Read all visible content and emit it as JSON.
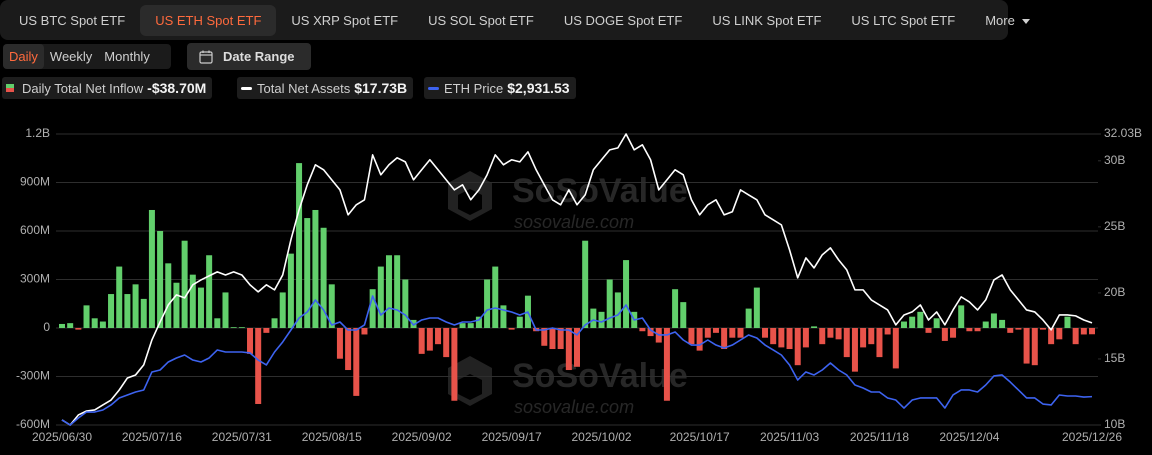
{
  "tabs": [
    "US BTC Spot ETF",
    "US ETH Spot ETF",
    "US XRP Spot ETF",
    "US SOL Spot ETF",
    "US DOGE Spot ETF",
    "US LINK Spot ETF",
    "US LTC Spot ETF"
  ],
  "more": "More",
  "periods": [
    "Daily",
    "Weekly",
    "Monthly"
  ],
  "date_range": "Date Range",
  "summary": [
    "-$38.70M",
    "$17.73B",
    "$2,931.53"
  ],
  "watermark": {
    "name": "SoSoValue",
    "url": "sosovalue.com"
  },
  "chart_data": {
    "type": "combo",
    "categories": [
      "2025/06/30",
      null,
      null,
      null,
      null,
      null,
      null,
      null,
      null,
      null,
      null,
      "2025/07/16",
      null,
      null,
      null,
      null,
      null,
      null,
      null,
      null,
      null,
      null,
      "2025/07/31",
      null,
      null,
      null,
      null,
      null,
      null,
      null,
      null,
      null,
      null,
      "2025/08/15",
      null,
      null,
      null,
      null,
      null,
      null,
      null,
      null,
      null,
      null,
      "2025/09/02",
      null,
      null,
      null,
      null,
      null,
      null,
      null,
      null,
      null,
      null,
      "2025/09/17",
      null,
      null,
      null,
      null,
      null,
      null,
      null,
      null,
      null,
      null,
      "2025/10/02",
      null,
      null,
      null,
      null,
      null,
      null,
      null,
      null,
      null,
      null,
      null,
      "2025/10/17",
      null,
      null,
      null,
      null,
      null,
      null,
      null,
      null,
      null,
      null,
      "2025/11/03",
      null,
      null,
      null,
      null,
      null,
      null,
      null,
      null,
      null,
      null,
      "2025/11/18",
      null,
      null,
      null,
      null,
      null,
      null,
      null,
      null,
      null,
      null,
      "2025/12/04",
      null,
      null,
      null,
      null,
      null,
      null,
      null,
      null,
      null,
      null,
      null,
      null,
      null,
      null,
      "2025/12/26"
    ],
    "series": [
      {
        "name": "Daily Total Net Inflow",
        "type": "bar",
        "color": "#62cf6c",
        "negative_color": "#e8534a",
        "values": [
          25,
          30,
          -10,
          140,
          60,
          40,
          210,
          380,
          210,
          270,
          180,
          730,
          600,
          400,
          280,
          540,
          330,
          250,
          450,
          60,
          220,
          5,
          5,
          -160,
          -470,
          -30,
          60,
          220,
          460,
          1020,
          680,
          730,
          620,
          270,
          -190,
          -260,
          -420,
          -40,
          240,
          380,
          450,
          450,
          300,
          50,
          -160,
          -140,
          -100,
          -180,
          -450,
          30,
          30,
          70,
          300,
          380,
          140,
          -10,
          70,
          200,
          -20,
          -110,
          -130,
          -130,
          -260,
          -240,
          540,
          120,
          100,
          300,
          220,
          420,
          100,
          -20,
          -50,
          -90,
          -450,
          240,
          160,
          -100,
          -140,
          -60,
          -30,
          -130,
          -60,
          -60,
          120,
          250,
          -60,
          -100,
          -120,
          -130,
          -230,
          -120,
          10,
          -100,
          -60,
          -70,
          -180,
          -270,
          -120,
          -100,
          -180,
          -40,
          -250,
          40,
          70,
          100,
          -30,
          60,
          -80,
          -60,
          140,
          -20,
          -20,
          40,
          90,
          50,
          -30,
          -10,
          -220,
          -230,
          -10,
          -100,
          -70,
          70,
          -100,
          -40,
          -38.7
        ]
      },
      {
        "name": "Total Net Assets",
        "type": "line",
        "axis": "y2",
        "color": "#ffffff",
        "values": [
          10.38,
          10.0,
          10.76,
          11.06,
          11.14,
          11.52,
          11.89,
          12.65,
          13.56,
          13.79,
          14.55,
          16.44,
          17.8,
          19.09,
          19.85,
          19.62,
          20.61,
          20.98,
          21.29,
          21.59,
          21.36,
          21.59,
          21.36,
          20.61,
          20.08,
          20.61,
          20.23,
          21.36,
          24.02,
          26.29,
          28.18,
          29.7,
          29.32,
          28.56,
          27.8,
          25.91,
          26.67,
          27.05,
          30.45,
          28.94,
          29.7,
          30.23,
          29.92,
          28.56,
          29.32,
          30.08,
          29.32,
          28.56,
          27.8,
          28.18,
          27.05,
          27.8,
          28.94,
          30.45,
          29.7,
          30.08,
          29.92,
          30.68,
          29.32,
          28.18,
          27.05,
          26.67,
          27.8,
          26.67,
          27.42,
          29.32,
          30.08,
          30.83,
          30.98,
          32.03,
          30.83,
          31.21,
          30.08,
          27.8,
          28.56,
          29.32,
          28.94,
          27.05,
          25.91,
          26.67,
          27.05,
          25.91,
          26.14,
          27.8,
          27.42,
          27.05,
          25.91,
          25.53,
          25.15,
          23.26,
          21.14,
          22.65,
          21.89,
          22.88,
          23.41,
          22.5,
          21.74,
          20.23,
          20.23,
          19.47,
          19.09,
          18.71,
          17.58,
          18.33,
          18.56,
          19.09,
          17.95,
          18.56,
          17.58,
          18.71,
          19.7,
          19.32,
          18.71,
          19.47,
          20.98,
          21.36,
          20.23,
          19.47,
          18.71,
          18.56,
          17.95,
          17.2,
          18.33,
          18.33,
          18.26,
          17.95,
          17.73
        ]
      },
      {
        "name": "ETH Price",
        "type": "line",
        "axis": "y3",
        "color": "#3d63f0",
        "values": [
          2494,
          2400,
          2531,
          2643,
          2643,
          2681,
          2775,
          2906,
          2962,
          3018,
          3056,
          3393,
          3430,
          3580,
          3655,
          3711,
          3617,
          3580,
          3655,
          3805,
          3767,
          3767,
          3767,
          3749,
          3617,
          3524,
          3767,
          3955,
          4179,
          4404,
          4516,
          4741,
          4554,
          4273,
          4329,
          4179,
          4179,
          4273,
          4816,
          4460,
          4591,
          4554,
          4460,
          4273,
          4367,
          4404,
          4404,
          4329,
          4273,
          4329,
          4329,
          4367,
          4554,
          4591,
          4554,
          4516,
          4460,
          4516,
          4179,
          4179,
          4217,
          4179,
          4179,
          4086,
          4273,
          4367,
          4329,
          4404,
          4460,
          4648,
          4367,
          4404,
          4179,
          4086,
          4086,
          4142,
          3992,
          3898,
          3898,
          3992,
          3898,
          3842,
          3898,
          3992,
          4086,
          4030,
          3898,
          3805,
          3711,
          3524,
          3243,
          3393,
          3337,
          3430,
          3561,
          3430,
          3337,
          3149,
          3093,
          3018,
          3018,
          2906,
          2868,
          2718,
          2868,
          2906,
          2906,
          2906,
          2718,
          2962,
          3056,
          3056,
          3018,
          3149,
          3318,
          3337,
          3205,
          3056,
          2906,
          2906,
          2793,
          2775,
          2962,
          2943,
          2943,
          2924,
          2931.53
        ]
      }
    ],
    "ylim": [
      -600,
      1200
    ],
    "yticks": [
      {
        "value": -600,
        "label": "-600M"
      },
      {
        "value": -300,
        "label": "-300M"
      },
      0,
      {
        "value": 300,
        "label": "300M"
      },
      {
        "value": 600,
        "label": "600M"
      },
      {
        "value": 900,
        "label": "900M"
      },
      {
        "value": 1200,
        "label": "1.2B"
      }
    ],
    "y2lim": [
      10,
      32.03
    ],
    "y2ticks": [
      {
        "value": 10,
        "label": "10B"
      },
      {
        "value": 15,
        "label": "15B"
      },
      {
        "value": 20,
        "label": "20B"
      },
      {
        "value": 25,
        "label": "25B"
      },
      {
        "value": 30,
        "label": "30B"
      },
      {
        "value": 32.03,
        "label": "32.03B"
      }
    ],
    "y3lim": [
      2400,
      7850
    ],
    "grid": true
  }
}
